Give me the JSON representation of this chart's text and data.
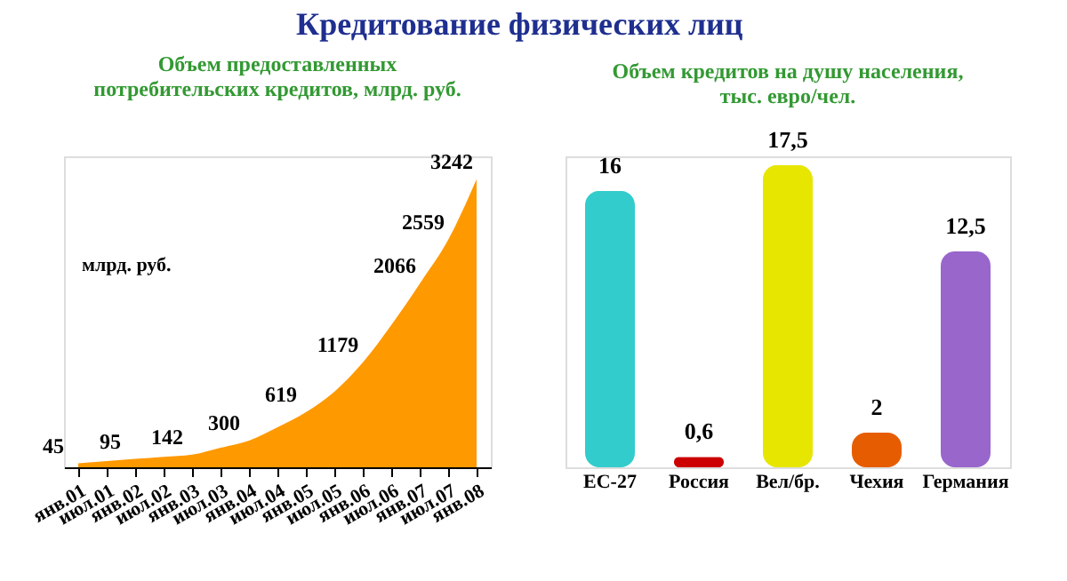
{
  "chart_data": [
    {
      "type": "area",
      "title": "Кредитование физических лиц",
      "subtitle": "Объем предоставленных\nпотребительских кредитов, млрд. руб.",
      "categories": [
        "янв.01",
        "июл.01",
        "янв.02",
        "июл.02",
        "янв.03",
        "июл.03",
        "янв.04",
        "июл.04",
        "янв.05",
        "июл.05",
        "янв.06",
        "июл.06",
        "янв.07",
        "июл.07",
        "янв.08"
      ],
      "values": [
        45,
        70,
        95,
        118,
        142,
        220,
        300,
        450,
        619,
        850,
        1179,
        1600,
        2066,
        2559,
        3242
      ],
      "value_labels": [
        "45",
        null,
        "95",
        null,
        "142",
        null,
        "300",
        null,
        "619",
        null,
        "1179",
        null,
        "2066",
        "2559",
        "3242"
      ],
      "color": "#ff9900",
      "annotations": [
        "млрд. руб."
      ],
      "grid": false
    },
    {
      "type": "bar",
      "subtitle": "Объем кредитов на душу населения,\nтыс. евро/чел.",
      "categories": [
        "ЕС-27",
        "Россия",
        "Вел/бр.",
        "Чехия",
        "Германия"
      ],
      "values": [
        16,
        0.6,
        17.5,
        2,
        12.5
      ],
      "value_labels": [
        "16",
        "0,6",
        "17,5",
        "2",
        "12,5"
      ],
      "colors": [
        "#33cccc",
        "#cc0000",
        "#e6e600",
        "#e65c00",
        "#9966cc"
      ],
      "grid": false
    }
  ]
}
